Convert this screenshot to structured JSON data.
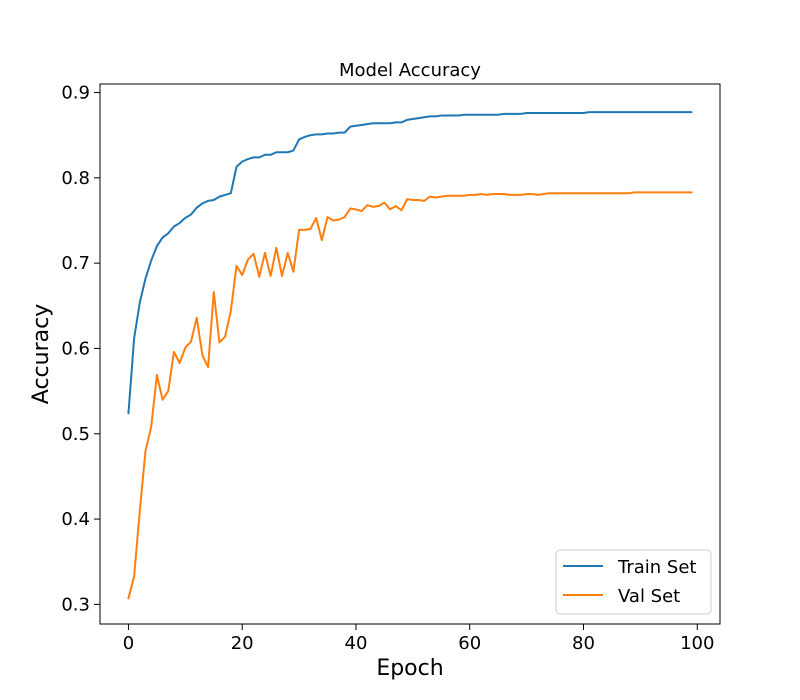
{
  "chart_data": {
    "type": "line",
    "title": "Model Accuracy",
    "xlabel": "Epoch",
    "ylabel": "Accuracy",
    "xlim": [
      -5,
      104
    ],
    "ylim": [
      0.277,
      0.91
    ],
    "xticks": [
      0,
      20,
      40,
      60,
      80,
      100
    ],
    "yticks": [
      0.3,
      0.4,
      0.5,
      0.6,
      0.7,
      0.8,
      0.9
    ],
    "grid": false,
    "legend_position": "bottom-right",
    "x": [
      0,
      1,
      2,
      3,
      4,
      5,
      6,
      7,
      8,
      9,
      10,
      11,
      12,
      13,
      14,
      15,
      16,
      17,
      18,
      19,
      20,
      21,
      22,
      23,
      24,
      25,
      26,
      27,
      28,
      29,
      30,
      31,
      32,
      33,
      34,
      35,
      36,
      37,
      38,
      39,
      40,
      41,
      42,
      43,
      44,
      45,
      46,
      47,
      48,
      49,
      50,
      51,
      52,
      53,
      54,
      55,
      56,
      57,
      58,
      59,
      60,
      61,
      62,
      63,
      64,
      65,
      66,
      67,
      68,
      69,
      70,
      71,
      72,
      73,
      74,
      75,
      76,
      77,
      78,
      79,
      80,
      81,
      82,
      83,
      84,
      85,
      86,
      87,
      88,
      89,
      90,
      91,
      92,
      93,
      94,
      95,
      96,
      97,
      98,
      99
    ],
    "series": [
      {
        "name": "Train Set",
        "color": "#1f77b4",
        "values": [
          0.524,
          0.612,
          0.654,
          0.682,
          0.703,
          0.72,
          0.73,
          0.735,
          0.743,
          0.747,
          0.753,
          0.757,
          0.765,
          0.77,
          0.773,
          0.774,
          0.778,
          0.78,
          0.782,
          0.813,
          0.819,
          0.822,
          0.824,
          0.824,
          0.827,
          0.827,
          0.83,
          0.83,
          0.83,
          0.832,
          0.845,
          0.848,
          0.85,
          0.851,
          0.851,
          0.852,
          0.852,
          0.853,
          0.853,
          0.86,
          0.861,
          0.862,
          0.863,
          0.864,
          0.864,
          0.864,
          0.864,
          0.865,
          0.865,
          0.868,
          0.869,
          0.87,
          0.871,
          0.872,
          0.872,
          0.873,
          0.873,
          0.873,
          0.873,
          0.874,
          0.874,
          0.874,
          0.874,
          0.874,
          0.874,
          0.874,
          0.875,
          0.875,
          0.875,
          0.875,
          0.876,
          0.876,
          0.876,
          0.876,
          0.876,
          0.876,
          0.876,
          0.876,
          0.876,
          0.876,
          0.876,
          0.877,
          0.877,
          0.877,
          0.877,
          0.877,
          0.877,
          0.877,
          0.877,
          0.877,
          0.877,
          0.877,
          0.877,
          0.877,
          0.877,
          0.877,
          0.877,
          0.877,
          0.877,
          0.877
        ]
      },
      {
        "name": "Val Set",
        "color": "#ff7f0e",
        "values": [
          0.307,
          0.333,
          0.41,
          0.48,
          0.508,
          0.569,
          0.54,
          0.55,
          0.596,
          0.583,
          0.601,
          0.608,
          0.636,
          0.592,
          0.578,
          0.666,
          0.607,
          0.614,
          0.644,
          0.697,
          0.686,
          0.704,
          0.711,
          0.684,
          0.712,
          0.685,
          0.718,
          0.685,
          0.712,
          0.69,
          0.739,
          0.739,
          0.74,
          0.753,
          0.727,
          0.754,
          0.75,
          0.751,
          0.754,
          0.764,
          0.763,
          0.761,
          0.768,
          0.766,
          0.767,
          0.771,
          0.763,
          0.767,
          0.762,
          0.775,
          0.774,
          0.774,
          0.773,
          0.778,
          0.777,
          0.778,
          0.779,
          0.779,
          0.779,
          0.779,
          0.78,
          0.78,
          0.781,
          0.78,
          0.781,
          0.781,
          0.781,
          0.78,
          0.78,
          0.78,
          0.781,
          0.781,
          0.78,
          0.781,
          0.782,
          0.782,
          0.782,
          0.782,
          0.782,
          0.782,
          0.782,
          0.782,
          0.782,
          0.782,
          0.782,
          0.782,
          0.782,
          0.782,
          0.782,
          0.783,
          0.783,
          0.783,
          0.783,
          0.783,
          0.783,
          0.783,
          0.783,
          0.783,
          0.783,
          0.783
        ]
      }
    ]
  }
}
